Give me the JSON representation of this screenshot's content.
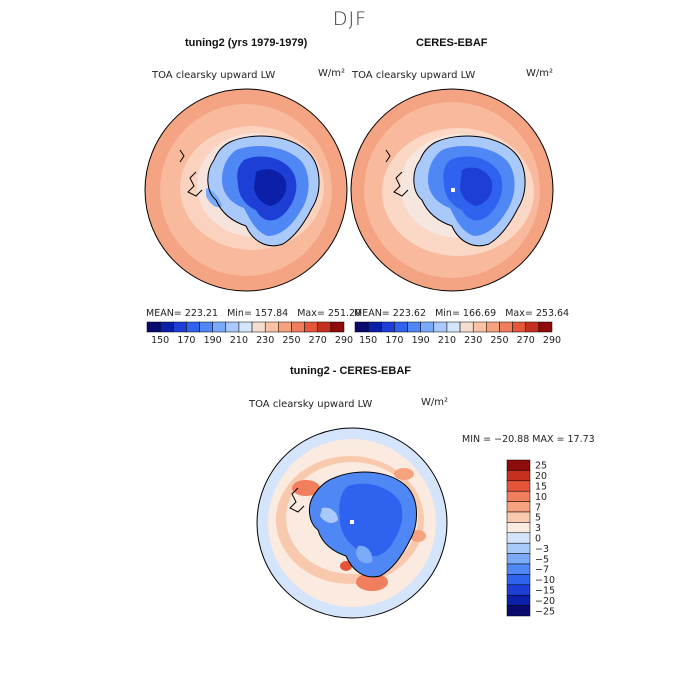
{
  "season": "DJF",
  "left_panel": {
    "title": "tuning2 (yrs 1979-1979)",
    "variable": "TOA clearsky upward LW",
    "units": "W/m²",
    "stats": {
      "mean": "MEAN= 223.21",
      "min": "Min= 157.84",
      "max": "Max= 251.20"
    }
  },
  "right_panel": {
    "title": "CERES-EBAF",
    "variable": "TOA clearsky upward LW",
    "units": "W/m²",
    "stats": {
      "mean": "MEAN= 223.62",
      "min": "Min= 166.69",
      "max": "Max= 253.64"
    }
  },
  "diff_panel": {
    "title": "tuning2 - CERES-EBAF",
    "variable": "TOA clearsky upward LW",
    "units": "W/m²",
    "minmax": "MIN = −20.88 MAX =  17.73"
  },
  "colors": {
    "abs_scale": [
      "#0a0a6e",
      "#0c1fa8",
      "#1d3fd6",
      "#2f62ee",
      "#4f87f5",
      "#7aaaf8",
      "#a9c9fb",
      "#d3e4fb",
      "#f6ddd1",
      "#f9c2a7",
      "#f7a27f",
      "#f17e5c",
      "#e4553a",
      "#c5301e",
      "#8f0c0c"
    ],
    "diff_scale": [
      "#0a0a6e",
      "#0c1fa8",
      "#1d3fd6",
      "#2f62ee",
      "#4f87f5",
      "#7aaaf8",
      "#a9c9fb",
      "#d3e4fb",
      "#fbeadf",
      "#f9c9ae",
      "#f7a27f",
      "#f17e5c",
      "#e4553a",
      "#c5301e",
      "#8f0c0c"
    ]
  },
  "chart_data": [
    {
      "type": "heatmap",
      "title": "tuning2 (yrs 1979-1979)",
      "projection": "south polar stereographic",
      "variable": "TOA clearsky upward LW",
      "units": "W/m²",
      "colorbar_ticks": [
        "150",
        "170",
        "190",
        "210",
        "230",
        "250",
        "270",
        "290"
      ],
      "mean": 223.21,
      "min": 157.84,
      "max": 251.2
    },
    {
      "type": "heatmap",
      "title": "CERES-EBAF",
      "projection": "south polar stereographic",
      "variable": "TOA clearsky upward LW",
      "units": "W/m²",
      "colorbar_ticks": [
        "150",
        "170",
        "190",
        "210",
        "230",
        "250",
        "270",
        "290"
      ],
      "mean": 223.62,
      "min": 166.69,
      "max": 253.64
    },
    {
      "type": "heatmap",
      "title": "tuning2 - CERES-EBAF",
      "projection": "south polar stereographic",
      "variable": "TOA clearsky upward LW",
      "units": "W/m²",
      "colorbar_levels": [
        "25",
        "20",
        "15",
        "10",
        "7",
        "5",
        "3",
        "0",
        "−3",
        "−5",
        "−7",
        "−10",
        "−15",
        "−20",
        "−25"
      ],
      "min": -20.88,
      "max": 17.73
    }
  ]
}
